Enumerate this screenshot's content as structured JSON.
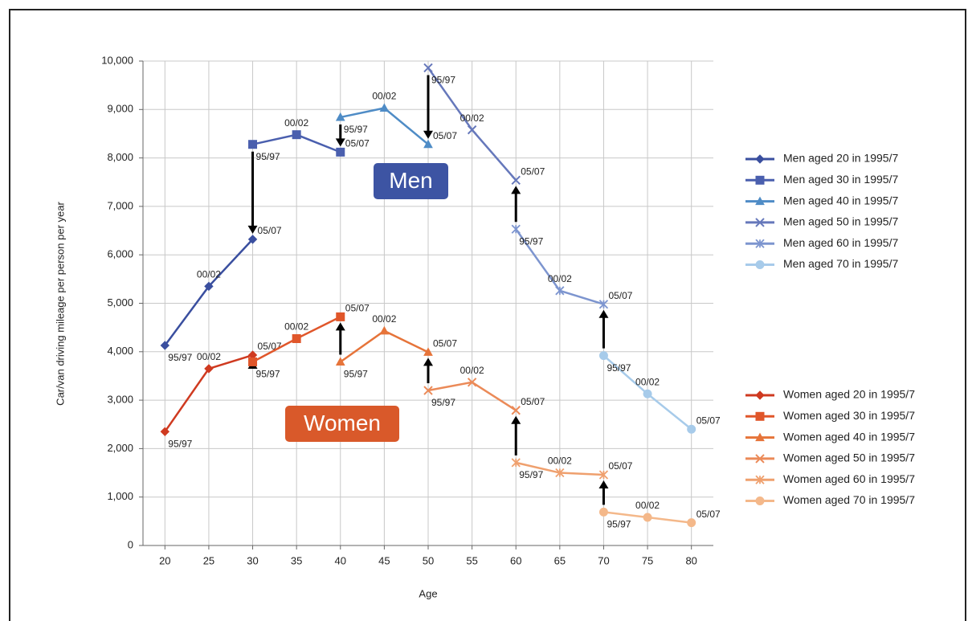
{
  "chart_data": {
    "type": "line",
    "xlabel": "Age",
    "ylabel": "Car/van driving mileage per person per year",
    "xlim": [
      17.5,
      82.5
    ],
    "xticks": [
      20,
      25,
      30,
      35,
      40,
      45,
      50,
      55,
      60,
      65,
      70,
      75,
      80
    ],
    "ylim": [
      0,
      10000
    ],
    "yticks": [
      0,
      {
        "value": 1000,
        "label": "1,000"
      },
      {
        "value": 2000,
        "label": "2,000"
      },
      {
        "value": 3000,
        "label": "3,000"
      },
      {
        "value": 4000,
        "label": "4,000"
      },
      {
        "value": 5000,
        "label": "5,000"
      },
      {
        "value": 6000,
        "label": "6,000"
      },
      {
        "value": 7000,
        "label": "7,000"
      },
      {
        "value": 8000,
        "label": "8,000"
      },
      {
        "value": 9000,
        "label": "9,000"
      },
      {
        "value": 10000,
        "label": "10,000"
      }
    ],
    "grid": true,
    "annotations": [
      {
        "text": "Men",
        "color": "#3d54a3"
      },
      {
        "text": "Women",
        "color": "#d9592a"
      }
    ],
    "series": [
      {
        "name": "Men aged 20 in 1995/7",
        "color": "#3a4f9f",
        "marker": "diamond",
        "x": [
          20,
          25,
          30
        ],
        "values": [
          4130,
          5350,
          6320
        ],
        "point_labels": [
          "95/97",
          "00/02",
          "05/07"
        ]
      },
      {
        "name": "Men aged 30 in 1995/7",
        "color": "#4a5fae",
        "marker": "square",
        "x": [
          30,
          35,
          40
        ],
        "values": [
          8280,
          8480,
          8120
        ],
        "point_labels": [
          "95/97",
          "00/02",
          "05/07"
        ]
      },
      {
        "name": "Men aged 40 in 1995/7",
        "color": "#4f8cc6",
        "marker": "triangle",
        "x": [
          40,
          45,
          50
        ],
        "values": [
          8840,
          9030,
          8280
        ],
        "point_labels": [
          "95/97",
          "00/02",
          "05/07"
        ]
      },
      {
        "name": "Men aged 50 in 1995/7",
        "color": "#6678bb",
        "marker": "x",
        "x": [
          50,
          55,
          60
        ],
        "values": [
          9860,
          8580,
          7540
        ],
        "point_labels": [
          "95/97",
          "00/02",
          "05/07"
        ]
      },
      {
        "name": "Men aged 60 in 1995/7",
        "color": "#7d95cf",
        "marker": "asterisk",
        "x": [
          60,
          65,
          70
        ],
        "values": [
          6530,
          5260,
          4980
        ],
        "point_labels": [
          "95/97",
          "00/02",
          "05/07"
        ]
      },
      {
        "name": "Men aged 70 in 1995/7",
        "color": "#a7cbea",
        "marker": "circle",
        "x": [
          70,
          75,
          80
        ],
        "values": [
          3920,
          3130,
          2400
        ],
        "point_labels": [
          "95/97",
          "00/02",
          "05/07"
        ]
      },
      {
        "name": "Women aged 20 in 1995/7",
        "color": "#cf3a20",
        "marker": "diamond",
        "x": [
          20,
          25,
          30
        ],
        "values": [
          2350,
          3650,
          3930
        ],
        "point_labels": [
          "95/97",
          "00/02",
          "05/07"
        ]
      },
      {
        "name": "Women aged 30 in 1995/7",
        "color": "#e0562a",
        "marker": "square",
        "x": [
          30,
          35,
          40
        ],
        "values": [
          3790,
          4270,
          4720
        ],
        "point_labels": [
          "95/97",
          "00/02",
          "05/07"
        ]
      },
      {
        "name": "Women aged 40 in 1995/7",
        "color": "#e6743a",
        "marker": "triangle",
        "x": [
          40,
          45,
          50
        ],
        "values": [
          3790,
          4430,
          3990
        ],
        "point_labels": [
          "95/97",
          "00/02",
          "05/07"
        ]
      },
      {
        "name": "Women aged 50 in 1995/7",
        "color": "#eb8a58",
        "marker": "x",
        "x": [
          50,
          55,
          60
        ],
        "values": [
          3200,
          3370,
          2790
        ],
        "point_labels": [
          "95/97",
          "00/02",
          "05/07"
        ]
      },
      {
        "name": "Women aged 60 in 1995/7",
        "color": "#efa06e",
        "marker": "asterisk",
        "x": [
          60,
          65,
          70
        ],
        "values": [
          1710,
          1500,
          1460
        ],
        "point_labels": [
          "95/97",
          "00/02",
          "05/07"
        ]
      },
      {
        "name": "Women aged 70 in 1995/7",
        "color": "#f4b88a",
        "marker": "circle",
        "x": [
          70,
          75,
          80
        ],
        "values": [
          690,
          580,
          470
        ],
        "point_labels": [
          "95/97",
          "00/02",
          "05/07"
        ]
      }
    ]
  }
}
